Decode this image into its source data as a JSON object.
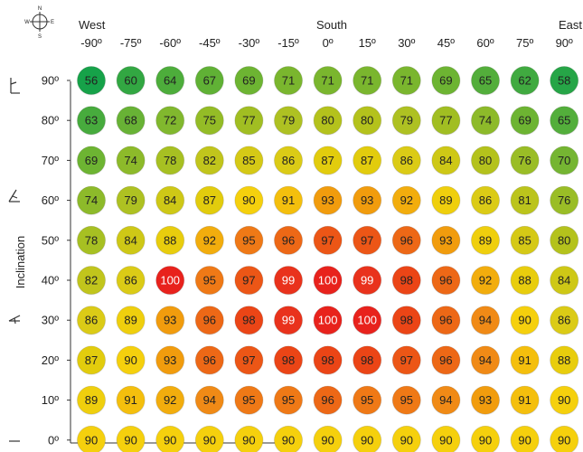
{
  "chart_data": {
    "type": "heatmap",
    "title": "",
    "xlabel": "",
    "ylabel": "Inclination",
    "direction_labels": {
      "west": "West",
      "south": "South",
      "east": "East"
    },
    "compass": {
      "n": "N",
      "s": "S",
      "e": "E",
      "w": "W"
    },
    "x_tick_labels": [
      "-90º",
      "-75º",
      "-60º",
      "-45º",
      "-30º",
      "-15º",
      "0º",
      "15º",
      "30º",
      "45º",
      "60º",
      "75º",
      "90º"
    ],
    "y_tick_labels": [
      "90º",
      "80º",
      "70º",
      "60º",
      "50º",
      "40º",
      "30º",
      "20º",
      "10º",
      "0º"
    ],
    "values": [
      [
        56,
        60,
        64,
        67,
        69,
        71,
        71,
        71,
        71,
        69,
        65,
        62,
        58
      ],
      [
        63,
        68,
        72,
        75,
        77,
        79,
        80,
        80,
        79,
        77,
        74,
        69,
        65
      ],
      [
        69,
        74,
        78,
        82,
        85,
        86,
        87,
        87,
        86,
        84,
        80,
        76,
        70
      ],
      [
        74,
        79,
        84,
        87,
        90,
        91,
        93,
        93,
        92,
        89,
        86,
        81,
        76
      ],
      [
        78,
        84,
        88,
        92,
        95,
        96,
        97,
        97,
        96,
        93,
        89,
        85,
        80
      ],
      [
        82,
        86,
        100,
        95,
        97,
        99,
        100,
        99,
        98,
        96,
        92,
        88,
        84
      ],
      [
        86,
        89,
        93,
        96,
        98,
        99,
        100,
        100,
        98,
        96,
        94,
        90,
        86
      ],
      [
        87,
        90,
        93,
        96,
        97,
        98,
        98,
        98,
        97,
        96,
        94,
        91,
        88
      ],
      [
        89,
        91,
        92,
        94,
        95,
        95,
        96,
        95,
        95,
        94,
        93,
        91,
        90
      ],
      [
        90,
        90,
        90,
        90,
        90,
        90,
        90,
        90,
        90,
        90,
        90,
        90,
        90
      ]
    ],
    "color_scale": {
      "low": "#19a24a",
      "mid": "#f5d00c",
      "high": "#e8211c"
    }
  }
}
